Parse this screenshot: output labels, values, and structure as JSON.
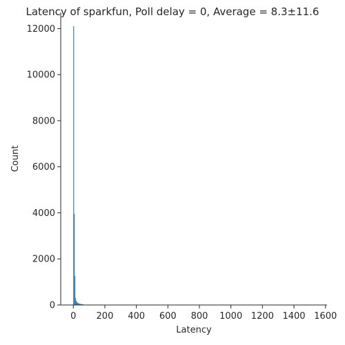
{
  "chart_data": {
    "type": "bar",
    "title": "Latency of sparkfun, Poll delay = 0, Average = 8.3±11.6",
    "xlabel": "Latency",
    "ylabel": "Count",
    "xlim": [
      -80,
      1610
    ],
    "ylim": [
      0,
      12700
    ],
    "xticks": [
      0,
      200,
      400,
      600,
      800,
      1000,
      1200,
      1400,
      1600
    ],
    "xtick_labels": [
      "0",
      "200",
      "400",
      "600",
      "800",
      "1000",
      "1200",
      "1400",
      "1600"
    ],
    "yticks": [
      0,
      2000,
      4000,
      6000,
      8000,
      10000,
      12000
    ],
    "ytick_labels": [
      "0",
      "2000",
      "4000",
      "6000",
      "8000",
      "10000",
      "12000"
    ],
    "bar_color": "#4c8fc0",
    "bar_edge_color": "#3a6f99",
    "grid": false,
    "series": [
      {
        "bins": [
          {
            "x0": 0,
            "x1": 4,
            "count": 12100
          },
          {
            "x0": 4,
            "x1": 8,
            "count": 3950
          },
          {
            "x0": 8,
            "x1": 12,
            "count": 1250
          },
          {
            "x0": 12,
            "x1": 16,
            "count": 300
          },
          {
            "x0": 16,
            "x1": 20,
            "count": 180
          },
          {
            "x0": 20,
            "x1": 24,
            "count": 130
          },
          {
            "x0": 24,
            "x1": 28,
            "count": 100
          },
          {
            "x0": 28,
            "x1": 32,
            "count": 80
          },
          {
            "x0": 32,
            "x1": 36,
            "count": 60
          },
          {
            "x0": 36,
            "x1": 40,
            "count": 50
          },
          {
            "x0": 40,
            "x1": 44,
            "count": 45
          },
          {
            "x0": 44,
            "x1": 48,
            "count": 40
          },
          {
            "x0": 48,
            "x1": 52,
            "count": 35
          },
          {
            "x0": 52,
            "x1": 56,
            "count": 30
          },
          {
            "x0": 56,
            "x1": 60,
            "count": 25
          },
          {
            "x0": 60,
            "x1": 64,
            "count": 20
          },
          {
            "x0": 64,
            "x1": 68,
            "count": 15
          },
          {
            "x0": 68,
            "x1": 72,
            "count": 10
          }
        ]
      }
    ]
  }
}
